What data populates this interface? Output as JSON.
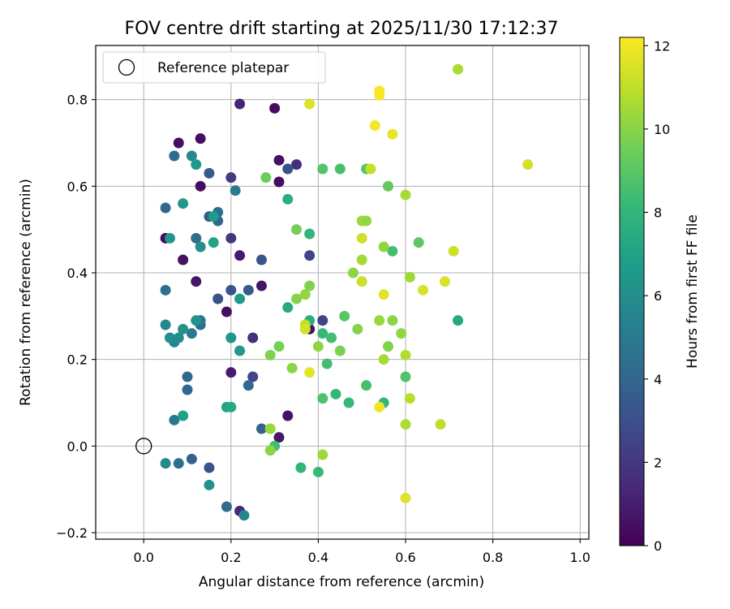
{
  "chart_data": {
    "type": "scatter",
    "title": "FOV centre drift starting at 2025/11/30 17:12:37",
    "xlabel": "Angular distance from reference (arcmin)",
    "ylabel": "Rotation from reference (arcmin)",
    "xlim": [
      -0.11,
      1.02
    ],
    "ylim": [
      -0.215,
      0.925
    ],
    "xticks": [
      0.0,
      0.2,
      0.4,
      0.6,
      0.8,
      1.0
    ],
    "xtick_labels": [
      "0.0",
      "0.2",
      "0.4",
      "0.6",
      "0.8",
      "1.0"
    ],
    "yticks": [
      -0.2,
      0.0,
      0.2,
      0.4,
      0.6,
      0.8
    ],
    "ytick_labels": [
      "−0.2",
      "0.0",
      "0.2",
      "0.4",
      "0.6",
      "0.8"
    ],
    "grid": true,
    "legend": {
      "location": "upper-left",
      "entries": [
        "Reference platepar"
      ]
    },
    "reference_point": {
      "x": 0.0,
      "y": 0.0,
      "label": "Reference platepar"
    },
    "colorbar": {
      "label": "Hours from first FF file",
      "range": [
        0,
        12.2
      ],
      "ticks": [
        0,
        2,
        4,
        6,
        8,
        10,
        12
      ],
      "tick_labels": [
        "0",
        "2",
        "4",
        "6",
        "8",
        "10",
        "12"
      ],
      "colormap": "viridis",
      "stops": [
        "#440154",
        "#482878",
        "#3e4989",
        "#31688e",
        "#26828e",
        "#1f9e89",
        "#35b779",
        "#6ece58",
        "#b5de2b",
        "#fde725"
      ]
    },
    "points": [
      {
        "x": 0.05,
        "y": 0.48,
        "h": 0.4
      },
      {
        "x": 0.08,
        "y": 0.7,
        "h": 0.5
      },
      {
        "x": 0.09,
        "y": 0.43,
        "h": 0.6
      },
      {
        "x": 0.13,
        "y": 0.71,
        "h": 0.5
      },
      {
        "x": 0.13,
        "y": 0.6,
        "h": 0.4
      },
      {
        "x": 0.12,
        "y": 0.38,
        "h": 0.7
      },
      {
        "x": 0.19,
        "y": 0.31,
        "h": 0.5
      },
      {
        "x": 0.22,
        "y": 0.44,
        "h": 0.9
      },
      {
        "x": 0.2,
        "y": 0.17,
        "h": 0.9
      },
      {
        "x": 0.22,
        "y": 0.79,
        "h": 1.3
      },
      {
        "x": 0.3,
        "y": 0.78,
        "h": 0.4
      },
      {
        "x": 0.31,
        "y": 0.66,
        "h": 0.6
      },
      {
        "x": 0.31,
        "y": 0.61,
        "h": 0.5
      },
      {
        "x": 0.27,
        "y": 0.37,
        "h": 0.7
      },
      {
        "x": 0.33,
        "y": 0.07,
        "h": 0.6
      },
      {
        "x": 0.31,
        "y": 0.02,
        "h": 0.8
      },
      {
        "x": 0.22,
        "y": -0.15,
        "h": 1.4
      },
      {
        "x": 0.25,
        "y": 0.25,
        "h": 1.7
      },
      {
        "x": 0.38,
        "y": 0.27,
        "h": 0.6
      },
      {
        "x": 0.35,
        "y": 0.65,
        "h": 1.7
      },
      {
        "x": 0.33,
        "y": 0.64,
        "h": 3.1
      },
      {
        "x": 0.2,
        "y": 0.62,
        "h": 2.2
      },
      {
        "x": 0.2,
        "y": 0.48,
        "h": 2.0
      },
      {
        "x": 0.38,
        "y": 0.44,
        "h": 2.6
      },
      {
        "x": 0.41,
        "y": 0.29,
        "h": 2.5
      },
      {
        "x": 0.25,
        "y": 0.16,
        "h": 2.6
      },
      {
        "x": 0.24,
        "y": 0.36,
        "h": 3.4
      },
      {
        "x": 0.27,
        "y": 0.43,
        "h": 3.2
      },
      {
        "x": 0.2,
        "y": 0.36,
        "h": 3.2
      },
      {
        "x": 0.17,
        "y": 0.34,
        "h": 3.1
      },
      {
        "x": 0.15,
        "y": 0.63,
        "h": 3.5
      },
      {
        "x": 0.15,
        "y": 0.53,
        "h": 3.6
      },
      {
        "x": 0.17,
        "y": 0.52,
        "h": 4.0
      },
      {
        "x": 0.17,
        "y": 0.54,
        "h": 4.5
      },
      {
        "x": 0.05,
        "y": 0.55,
        "h": 4.1
      },
      {
        "x": 0.07,
        "y": 0.67,
        "h": 4.3
      },
      {
        "x": 0.12,
        "y": 0.48,
        "h": 4.4
      },
      {
        "x": 0.21,
        "y": 0.59,
        "h": 5.1
      },
      {
        "x": 0.05,
        "y": 0.36,
        "h": 4.5
      },
      {
        "x": 0.1,
        "y": 0.16,
        "h": 4.1
      },
      {
        "x": 0.1,
        "y": 0.13,
        "h": 4.0
      },
      {
        "x": 0.13,
        "y": 0.28,
        "h": 4.3
      },
      {
        "x": 0.13,
        "y": 0.29,
        "h": 4.9
      },
      {
        "x": 0.11,
        "y": 0.26,
        "h": 5.0
      },
      {
        "x": 0.24,
        "y": 0.14,
        "h": 4.1
      },
      {
        "x": 0.27,
        "y": 0.04,
        "h": 3.9
      },
      {
        "x": 0.15,
        "y": -0.05,
        "h": 3.3
      },
      {
        "x": 0.11,
        "y": -0.03,
        "h": 3.8
      },
      {
        "x": 0.08,
        "y": -0.04,
        "h": 4.5
      },
      {
        "x": 0.19,
        "y": -0.14,
        "h": 4.3
      },
      {
        "x": 0.07,
        "y": 0.06,
        "h": 5.0
      },
      {
        "x": 0.23,
        "y": -0.16,
        "h": 5.6
      },
      {
        "x": 0.05,
        "y": -0.04,
        "h": 5.8
      },
      {
        "x": 0.15,
        "y": -0.09,
        "h": 6.2
      },
      {
        "x": 0.05,
        "y": 0.28,
        "h": 5.6
      },
      {
        "x": 0.07,
        "y": 0.24,
        "h": 5.5
      },
      {
        "x": 0.06,
        "y": 0.25,
        "h": 6.0
      },
      {
        "x": 0.08,
        "y": 0.25,
        "h": 5.9
      },
      {
        "x": 0.09,
        "y": 0.27,
        "h": 6.2
      },
      {
        "x": 0.06,
        "y": 0.48,
        "h": 6.4
      },
      {
        "x": 0.12,
        "y": 0.29,
        "h": 6.3
      },
      {
        "x": 0.13,
        "y": 0.46,
        "h": 6.0
      },
      {
        "x": 0.11,
        "y": 0.67,
        "h": 5.8
      },
      {
        "x": 0.12,
        "y": 0.65,
        "h": 6.6
      },
      {
        "x": 0.09,
        "y": 0.56,
        "h": 6.6
      },
      {
        "x": 0.16,
        "y": 0.53,
        "h": 6.7
      },
      {
        "x": 0.16,
        "y": 0.47,
        "h": 7.0
      },
      {
        "x": 0.2,
        "y": 0.25,
        "h": 6.4
      },
      {
        "x": 0.22,
        "y": 0.22,
        "h": 6.5
      },
      {
        "x": 0.22,
        "y": 0.34,
        "h": 6.7
      },
      {
        "x": 0.09,
        "y": 0.07,
        "h": 6.9
      },
      {
        "x": 0.19,
        "y": 0.09,
        "h": 7.0
      },
      {
        "x": 0.2,
        "y": 0.09,
        "h": 7.3
      },
      {
        "x": 0.33,
        "y": 0.32,
        "h": 7.4
      },
      {
        "x": 0.33,
        "y": 0.57,
        "h": 7.6
      },
      {
        "x": 0.38,
        "y": 0.29,
        "h": 7.6
      },
      {
        "x": 0.38,
        "y": 0.49,
        "h": 8.0
      },
      {
        "x": 0.41,
        "y": 0.26,
        "h": 8.2
      },
      {
        "x": 0.36,
        "y": -0.05,
        "h": 7.9
      },
      {
        "x": 0.4,
        "y": -0.06,
        "h": 8.2
      },
      {
        "x": 0.3,
        "y": 0.0,
        "h": 8.4
      },
      {
        "x": 0.41,
        "y": 0.11,
        "h": 8.7
      },
      {
        "x": 0.42,
        "y": 0.19,
        "h": 8.5
      },
      {
        "x": 0.44,
        "y": 0.12,
        "h": 8.1
      },
      {
        "x": 0.43,
        "y": 0.25,
        "h": 8.5
      },
      {
        "x": 0.45,
        "y": 0.64,
        "h": 8.6
      },
      {
        "x": 0.41,
        "y": 0.64,
        "h": 8.9
      },
      {
        "x": 0.47,
        "y": 0.1,
        "h": 8.2
      },
      {
        "x": 0.51,
        "y": 0.14,
        "h": 8.6
      },
      {
        "x": 0.55,
        "y": 0.1,
        "h": 8.0
      },
      {
        "x": 0.46,
        "y": 0.3,
        "h": 9.0
      },
      {
        "x": 0.57,
        "y": 0.45,
        "h": 8.5
      },
      {
        "x": 0.63,
        "y": 0.47,
        "h": 9.1
      },
      {
        "x": 0.72,
        "y": 0.29,
        "h": 7.3
      },
      {
        "x": 0.6,
        "y": 0.16,
        "h": 8.8
      },
      {
        "x": 0.56,
        "y": 0.6,
        "h": 9.2
      },
      {
        "x": 0.51,
        "y": 0.64,
        "h": 9.0
      },
      {
        "x": 0.28,
        "y": 0.62,
        "h": 9.4
      },
      {
        "x": 0.31,
        "y": 0.23,
        "h": 9.6
      },
      {
        "x": 0.29,
        "y": 0.21,
        "h": 9.8
      },
      {
        "x": 0.35,
        "y": 0.5,
        "h": 9.6
      },
      {
        "x": 0.35,
        "y": 0.34,
        "h": 9.9
      },
      {
        "x": 0.34,
        "y": 0.18,
        "h": 10.0
      },
      {
        "x": 0.37,
        "y": 0.35,
        "h": 10.2
      },
      {
        "x": 0.38,
        "y": 0.37,
        "h": 9.8
      },
      {
        "x": 0.4,
        "y": 0.23,
        "h": 10.1
      },
      {
        "x": 0.29,
        "y": 0.04,
        "h": 10.3
      },
      {
        "x": 0.29,
        "y": -0.01,
        "h": 10.0
      },
      {
        "x": 0.41,
        "y": -0.02,
        "h": 10.4
      },
      {
        "x": 0.45,
        "y": 0.22,
        "h": 9.7
      },
      {
        "x": 0.48,
        "y": 0.4,
        "h": 10.1
      },
      {
        "x": 0.49,
        "y": 0.27,
        "h": 9.9
      },
      {
        "x": 0.5,
        "y": 0.52,
        "h": 10.4
      },
      {
        "x": 0.51,
        "y": 0.52,
        "h": 10.2
      },
      {
        "x": 0.5,
        "y": 0.43,
        "h": 10.5
      },
      {
        "x": 0.54,
        "y": 0.29,
        "h": 10.3
      },
      {
        "x": 0.55,
        "y": 0.46,
        "h": 10.1
      },
      {
        "x": 0.57,
        "y": 0.29,
        "h": 10.0
      },
      {
        "x": 0.55,
        "y": 0.2,
        "h": 10.6
      },
      {
        "x": 0.56,
        "y": 0.23,
        "h": 9.8
      },
      {
        "x": 0.59,
        "y": 0.26,
        "h": 10.2
      },
      {
        "x": 0.61,
        "y": 0.39,
        "h": 10.4
      },
      {
        "x": 0.6,
        "y": 0.21,
        "h": 10.8
      },
      {
        "x": 0.6,
        "y": 0.58,
        "h": 10.6
      },
      {
        "x": 0.61,
        "y": 0.11,
        "h": 10.9
      },
      {
        "x": 0.6,
        "y": 0.05,
        "h": 10.7
      },
      {
        "x": 0.68,
        "y": 0.05,
        "h": 11.0
      },
      {
        "x": 0.52,
        "y": 0.64,
        "h": 11.1
      },
      {
        "x": 0.5,
        "y": 0.48,
        "h": 11.3
      },
      {
        "x": 0.5,
        "y": 0.38,
        "h": 11.2
      },
      {
        "x": 0.64,
        "y": 0.36,
        "h": 11.5
      },
      {
        "x": 0.55,
        "y": 0.35,
        "h": 11.7
      },
      {
        "x": 0.6,
        "y": -0.12,
        "h": 11.6
      },
      {
        "x": 0.37,
        "y": 0.28,
        "h": 11.0
      },
      {
        "x": 0.37,
        "y": 0.27,
        "h": 11.4
      },
      {
        "x": 0.72,
        "y": 0.87,
        "h": 10.6
      },
      {
        "x": 0.88,
        "y": 0.65,
        "h": 11.4
      },
      {
        "x": 0.71,
        "y": 0.45,
        "h": 11.3
      },
      {
        "x": 0.69,
        "y": 0.38,
        "h": 11.5
      },
      {
        "x": 0.38,
        "y": 0.79,
        "h": 11.6
      },
      {
        "x": 0.38,
        "y": 0.17,
        "h": 11.7
      },
      {
        "x": 0.54,
        "y": 0.09,
        "h": 11.9
      },
      {
        "x": 0.54,
        "y": 0.81,
        "h": 12.1
      },
      {
        "x": 0.54,
        "y": 0.82,
        "h": 12.1
      },
      {
        "x": 0.53,
        "y": 0.74,
        "h": 12.0
      },
      {
        "x": 0.57,
        "y": 0.72,
        "h": 11.8
      }
    ]
  }
}
